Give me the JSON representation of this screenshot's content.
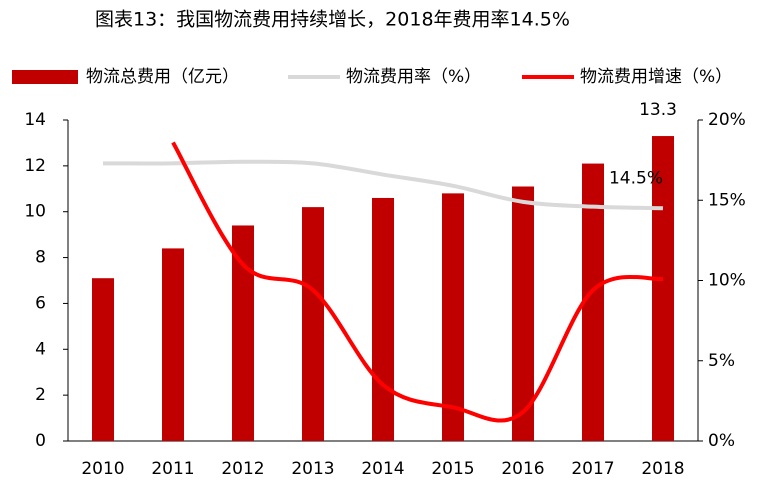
{
  "chart_data": {
    "type": "bar-line",
    "title": "图表13：我国物流费用持续增长，2018年费用率14.5%",
    "categories": [
      "2010",
      "2011",
      "2012",
      "2013",
      "2014",
      "2015",
      "2016",
      "2017",
      "2018"
    ],
    "series": [
      {
        "name": "物流总费用（亿元）",
        "color": "#c00000",
        "type": "bar",
        "values": [
          7.1,
          8.4,
          9.4,
          10.2,
          10.6,
          10.8,
          11.1,
          12.1,
          13.3
        ],
        "value_labels": [
          null,
          null,
          null,
          null,
          null,
          null,
          null,
          null,
          "13.3"
        ]
      },
      {
        "name": "物流费用率（%）",
        "color": "#d9d9d9",
        "type": "line",
        "axis": "y2",
        "values": [
          17.3,
          17.3,
          17.4,
          17.3,
          16.6,
          15.9,
          14.9,
          14.6,
          14.5
        ],
        "value_labels": [
          null,
          null,
          null,
          null,
          null,
          null,
          null,
          null,
          "14.5%"
        ]
      },
      {
        "name": "物流费用增速（%）",
        "color": "#ff0000",
        "type": "line",
        "axis": "y2",
        "values": [
          null,
          18.6,
          11.0,
          9.4,
          3.5,
          2.1,
          1.8,
          9.4,
          10.1
        ]
      }
    ],
    "ylim": [
      0,
      14
    ],
    "yticks": [
      0,
      2,
      4,
      6,
      8,
      10,
      12,
      14
    ],
    "y2lim": [
      0,
      20
    ],
    "y2ticks": [
      {
        "value": 0,
        "label": "0%"
      },
      {
        "value": 5,
        "label": "5%"
      },
      {
        "value": 10,
        "label": "10%"
      },
      {
        "value": 15,
        "label": "15%"
      },
      {
        "value": 20,
        "label": "20%"
      }
    ],
    "grid": false
  }
}
